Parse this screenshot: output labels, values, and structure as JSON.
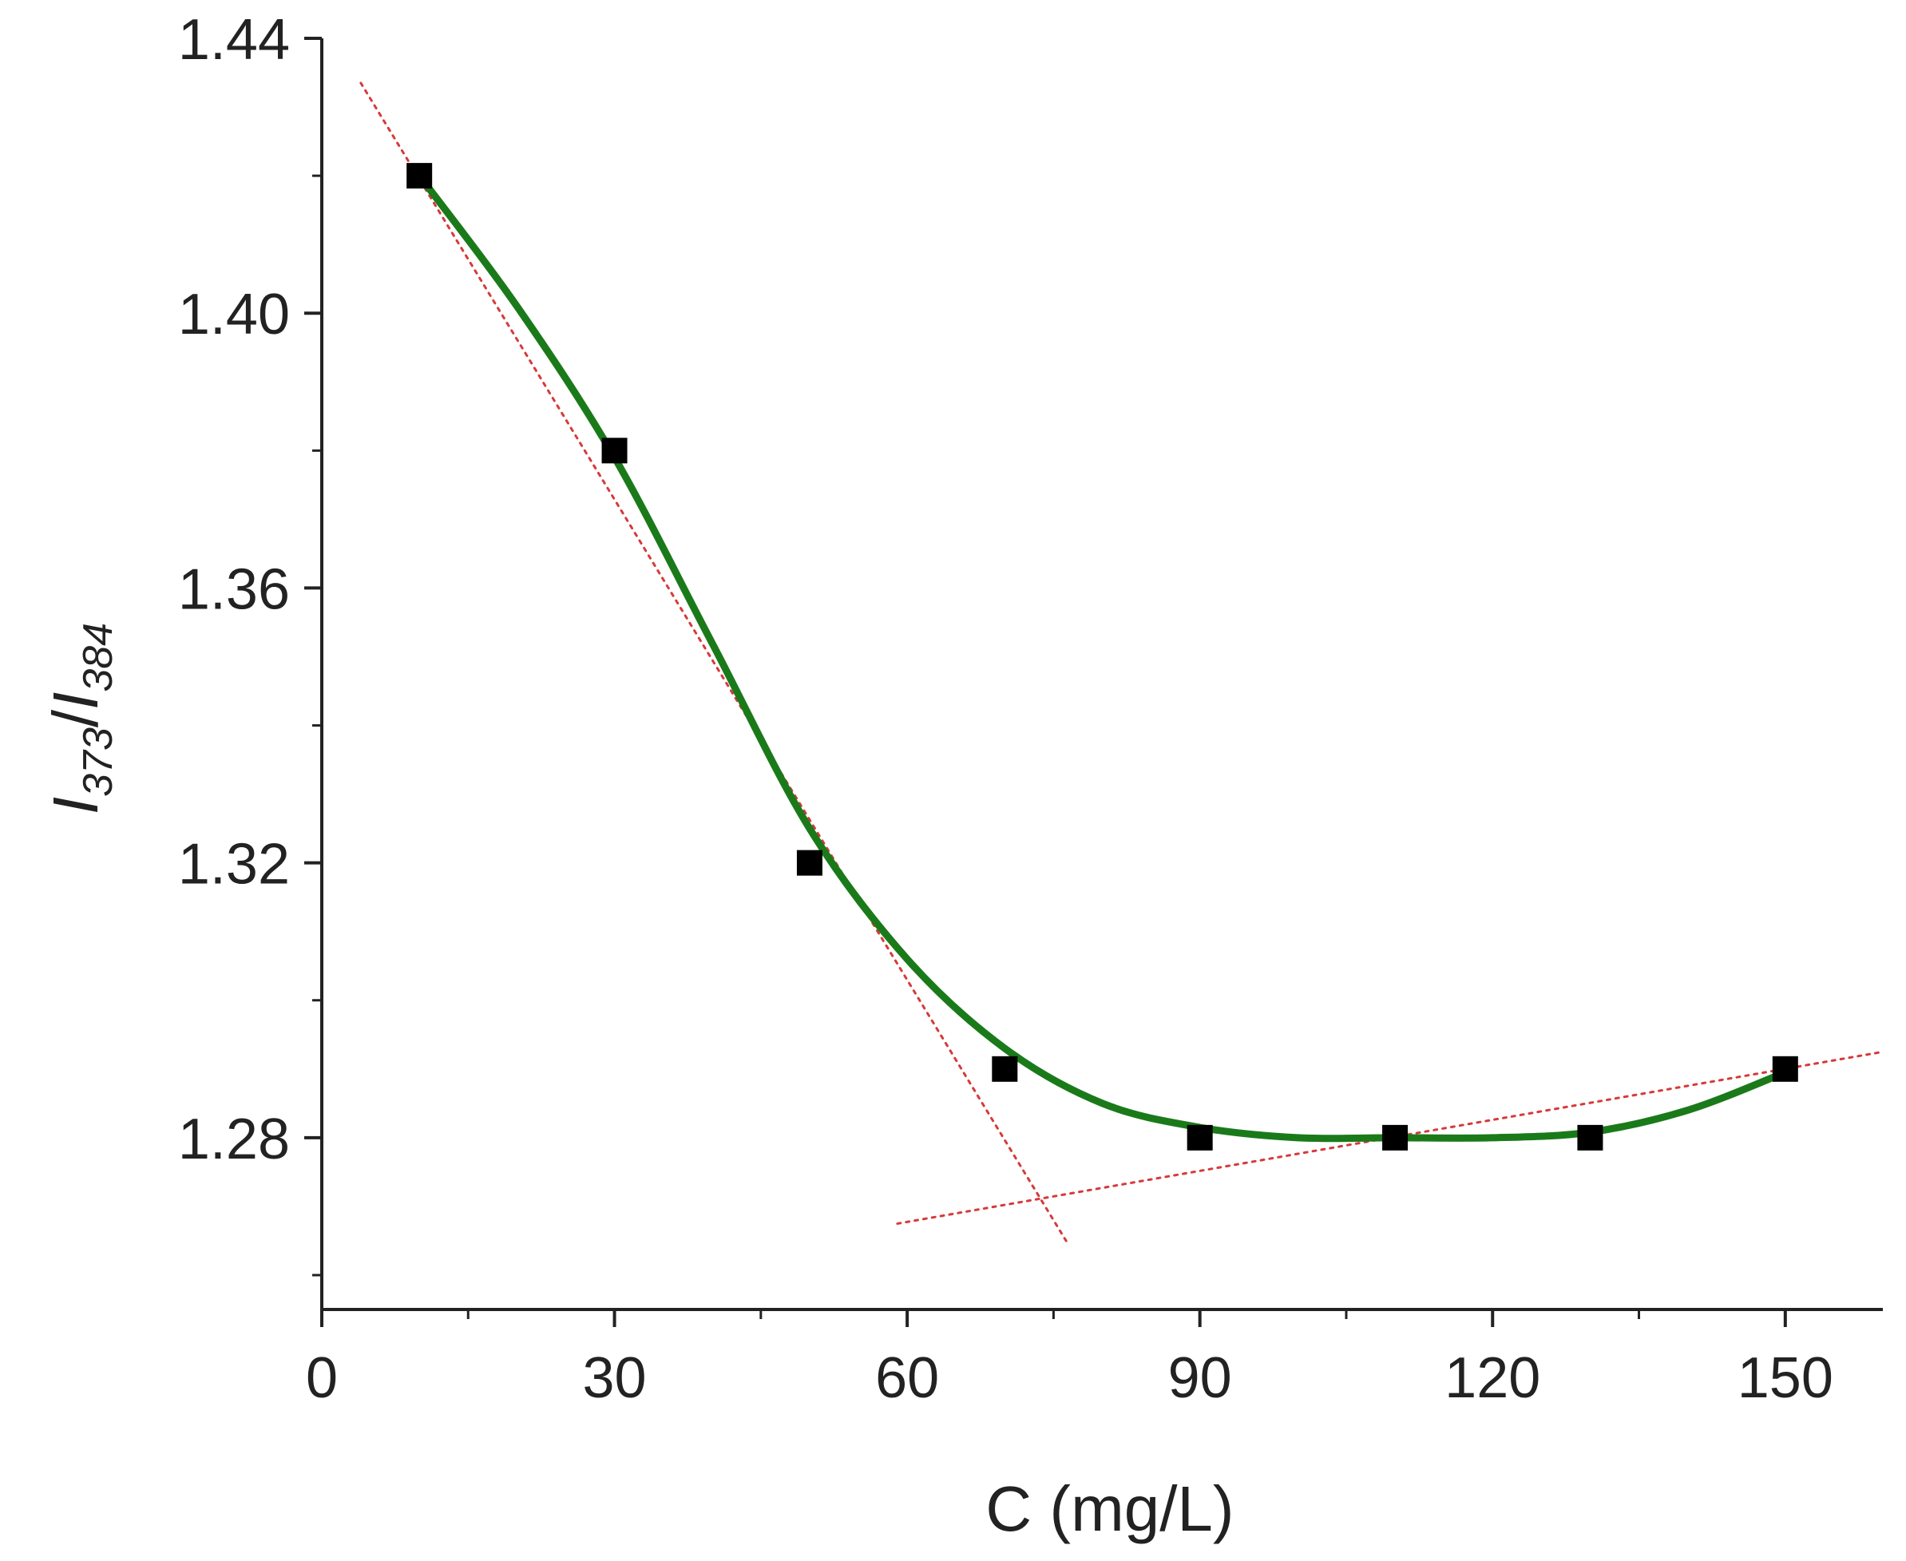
{
  "chart_data": {
    "type": "scatter",
    "xlabel": "C (mg/L)",
    "ylabel": {
      "var1": "I",
      "sub1": "373",
      "slash": "/",
      "var2": "I",
      "sub2": "384"
    },
    "xlim": [
      0,
      160
    ],
    "ylim": [
      1.255,
      1.44
    ],
    "x_ticks": [
      0,
      30,
      60,
      90,
      120,
      150
    ],
    "x_tick_labels": [
      "0",
      "30",
      "60",
      "90",
      "120",
      "150"
    ],
    "x_minor_ticks": [
      15,
      45,
      75,
      105,
      135
    ],
    "y_ticks": [
      1.28,
      1.32,
      1.36,
      1.4,
      1.44
    ],
    "y_tick_labels": [
      "1.28",
      "1.32",
      "1.36",
      "1.40",
      "1.44"
    ],
    "y_minor_ticks": [
      1.26,
      1.3,
      1.34,
      1.38,
      1.42
    ],
    "grid": false,
    "legend": "none",
    "series": [
      {
        "marker": "square",
        "color": "#000000",
        "x": [
          10,
          30,
          50,
          70,
          90,
          110,
          130,
          150
        ],
        "y": [
          1.42,
          1.38,
          1.32,
          1.29,
          1.28,
          1.28,
          1.28,
          1.29
        ]
      }
    ],
    "fit_curve": {
      "style": "solid",
      "color": "#1a7a1a",
      "x": [
        10,
        20,
        30,
        40,
        50,
        60,
        70,
        80,
        90,
        100,
        110,
        120,
        130,
        140,
        150
      ],
      "y": [
        1.42,
        1.401,
        1.379,
        1.352,
        1.325,
        1.306,
        1.293,
        1.285,
        1.2815,
        1.28,
        1.28,
        1.28,
        1.2808,
        1.284,
        1.2895
      ]
    },
    "tangent_lines": [
      {
        "style": "dotted",
        "color": "#d63a3a",
        "x": [
          4,
          76.5
        ],
        "y": [
          1.4335,
          1.2645
        ]
      },
      {
        "style": "dotted",
        "color": "#d63a3a",
        "x": [
          59,
          160
        ],
        "y": [
          1.2675,
          1.2925
        ]
      }
    ]
  }
}
